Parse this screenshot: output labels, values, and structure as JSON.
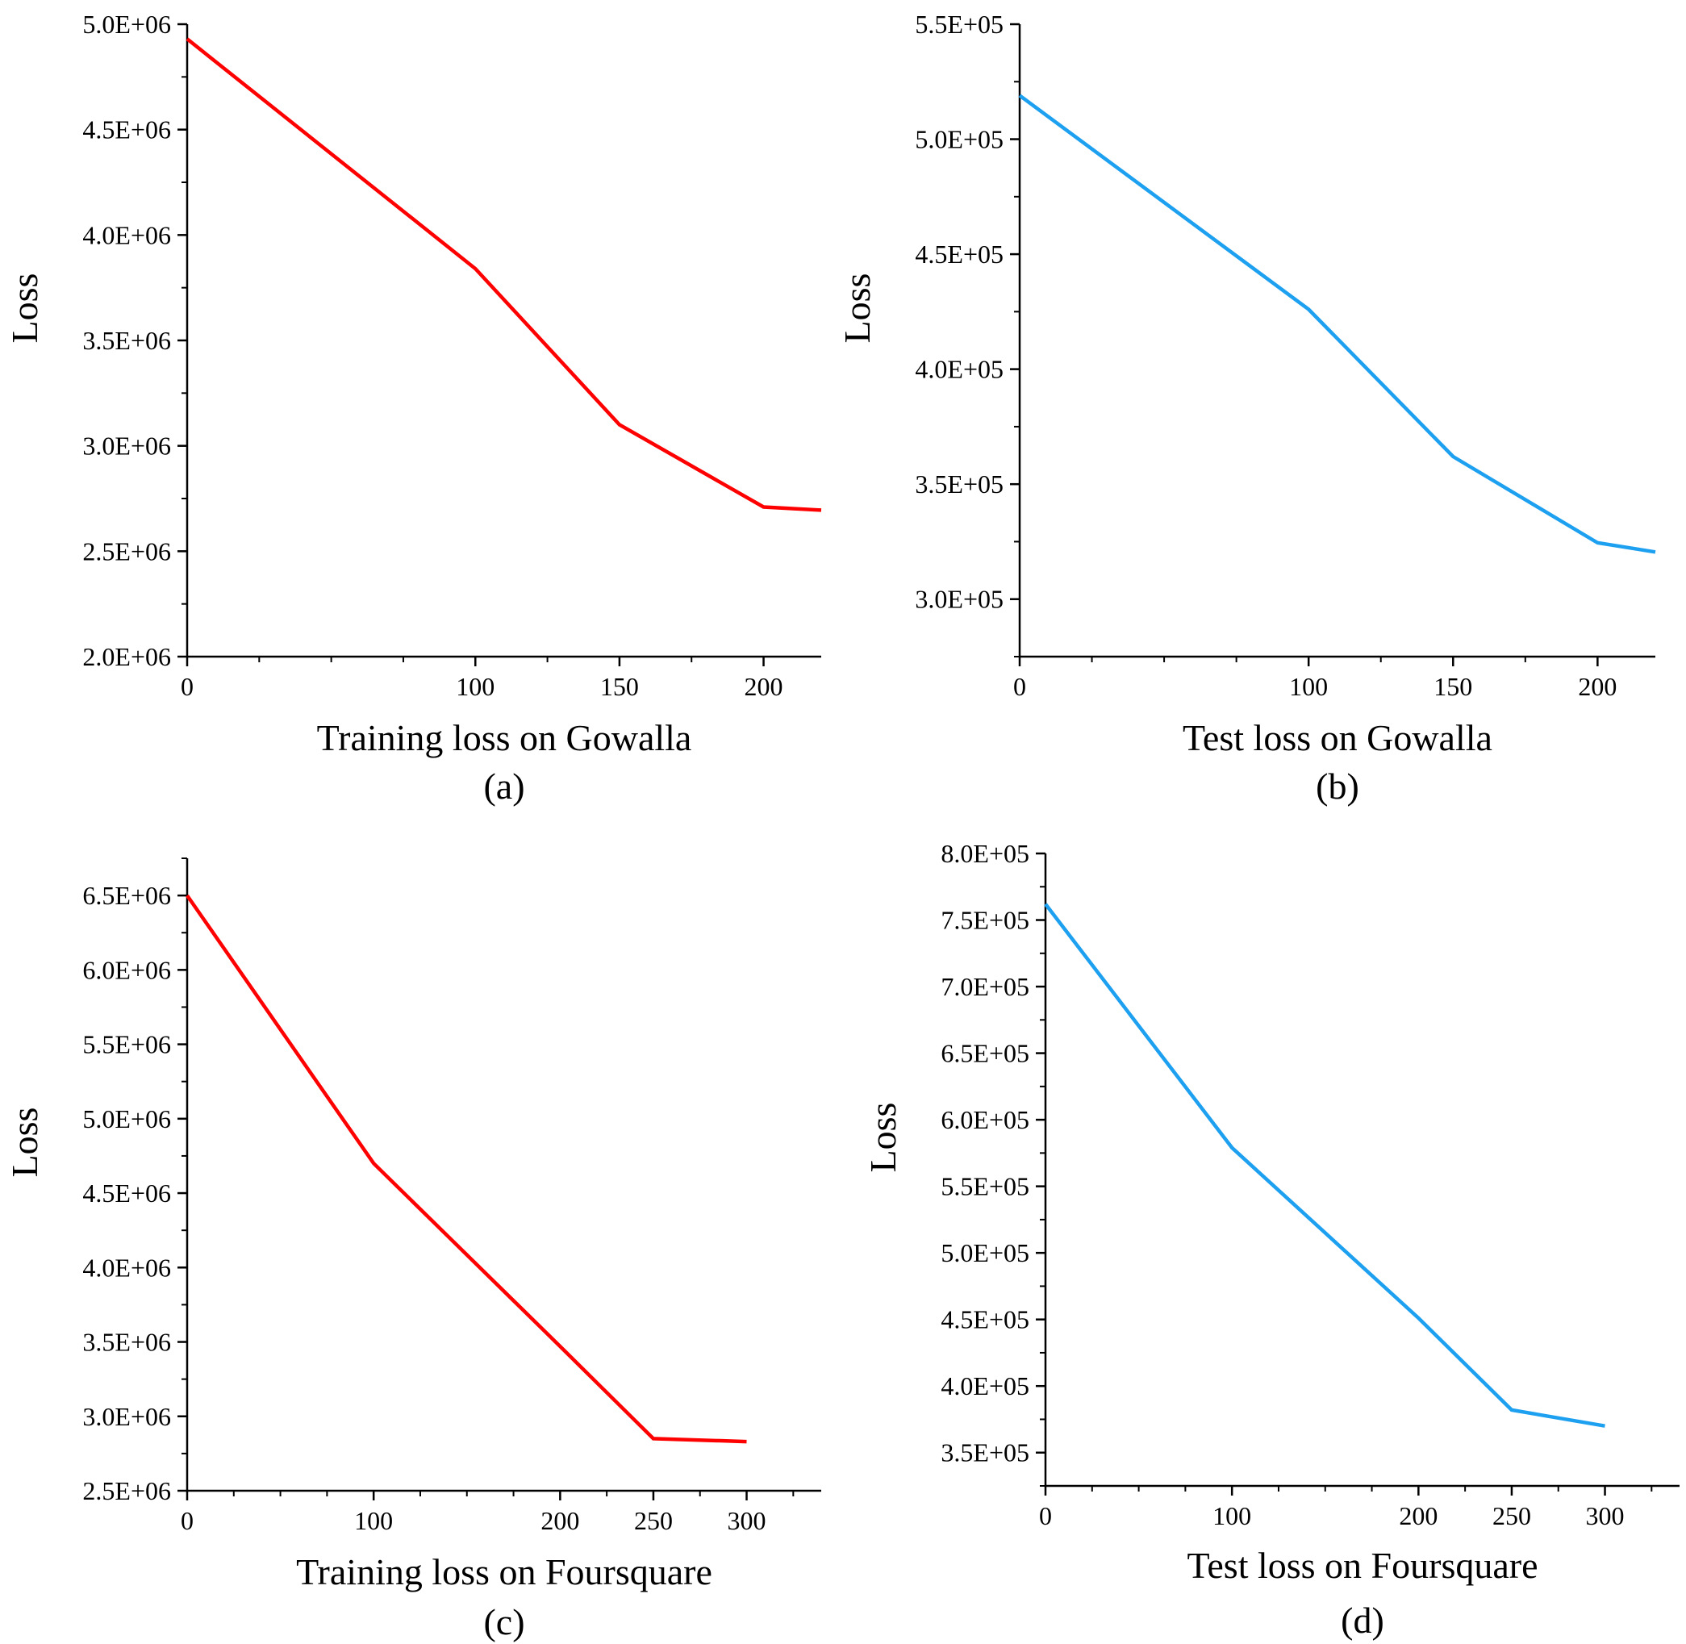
{
  "chart_data": [
    {
      "id": "a",
      "type": "line",
      "title": "",
      "xlabel": "Training loss on Gowalla",
      "ylabel": "Loss",
      "panel_label": "(a)",
      "color": "#ff0000",
      "xlim": [
        0,
        220
      ],
      "ylim": [
        2000000,
        5000000
      ],
      "xticks": [
        0,
        100,
        150,
        200
      ],
      "xtick_labels": [
        "0",
        "100",
        "150",
        "200"
      ],
      "yticks": [
        2000000,
        2500000,
        3000000,
        3500000,
        4000000,
        4500000,
        5000000
      ],
      "ytick_labels": [
        "2.0E+06",
        "2.5E+06",
        "3.0E+06",
        "3.5E+06",
        "4.0E+06",
        "4.5E+06",
        "5.0E+06"
      ],
      "series": [
        {
          "name": "Training loss",
          "x": [
            0,
            100,
            150,
            200,
            220
          ],
          "y": [
            4930000,
            3840000,
            3100000,
            2710000,
            2695000
          ]
        }
      ]
    },
    {
      "id": "b",
      "type": "line",
      "title": "",
      "xlabel": "Test loss on Gowalla",
      "ylabel": "Loss",
      "panel_label": "(b)",
      "color": "#1ea0f0",
      "xlim": [
        0,
        220
      ],
      "ylim": [
        275000,
        550000
      ],
      "xticks": [
        0,
        100,
        150,
        200
      ],
      "xtick_labels": [
        "0",
        "100",
        "150",
        "200"
      ],
      "yticks": [
        300000,
        350000,
        400000,
        450000,
        500000,
        550000
      ],
      "ytick_labels": [
        "3.0E+05",
        "3.5E+05",
        "4.0E+05",
        "4.5E+05",
        "5.0E+05",
        "5.5E+05"
      ],
      "series": [
        {
          "name": "Test loss",
          "x": [
            0,
            100,
            150,
            200,
            220
          ],
          "y": [
            519000,
            426000,
            362000,
            324500,
            320500
          ]
        }
      ]
    },
    {
      "id": "c",
      "type": "line",
      "title": "",
      "xlabel": "Training loss on Foursquare",
      "ylabel": "Loss",
      "panel_label": "(c)",
      "color": "#ff0000",
      "xlim": [
        0,
        340
      ],
      "ylim": [
        2500000,
        6750000
      ],
      "xticks": [
        0,
        100,
        200,
        250,
        300
      ],
      "xtick_labels": [
        "0",
        "100",
        "200",
        "250",
        "300"
      ],
      "yticks": [
        2500000,
        3000000,
        3500000,
        4000000,
        4500000,
        5000000,
        5500000,
        6000000,
        6500000
      ],
      "ytick_labels": [
        "2.5E+06",
        "3.0E+06",
        "3.5E+06",
        "4.0E+06",
        "4.5E+06",
        "5.0E+06",
        "5.5E+06",
        "6.0E+06",
        "6.5E+06"
      ],
      "series": [
        {
          "name": "Training loss",
          "x": [
            0,
            100,
            200,
            250,
            300
          ],
          "y": [
            6500000,
            4700000,
            3470000,
            2850000,
            2830000
          ]
        }
      ]
    },
    {
      "id": "d",
      "type": "line",
      "title": "",
      "xlabel": "Test loss on Foursquare",
      "ylabel": "Loss",
      "panel_label": "(d)",
      "color": "#1ea0f0",
      "xlim": [
        0,
        340
      ],
      "ylim": [
        325000,
        800000
      ],
      "xticks": [
        0,
        100,
        200,
        250,
        300
      ],
      "xtick_labels": [
        "0",
        "100",
        "200",
        "250",
        "300"
      ],
      "yticks": [
        350000,
        400000,
        450000,
        500000,
        550000,
        600000,
        650000,
        700000,
        750000,
        800000
      ],
      "ytick_labels": [
        "3.5E+05",
        "4.0E+05",
        "4.5E+05",
        "5.0E+05",
        "5.5E+05",
        "6.0E+05",
        "6.5E+05",
        "7.0E+05",
        "7.5E+05",
        "8.0E+05"
      ],
      "series": [
        {
          "name": "Test loss",
          "x": [
            0,
            100,
            200,
            250,
            300
          ],
          "y": [
            762000,
            579000,
            451000,
            382000,
            370000
          ]
        }
      ]
    }
  ]
}
